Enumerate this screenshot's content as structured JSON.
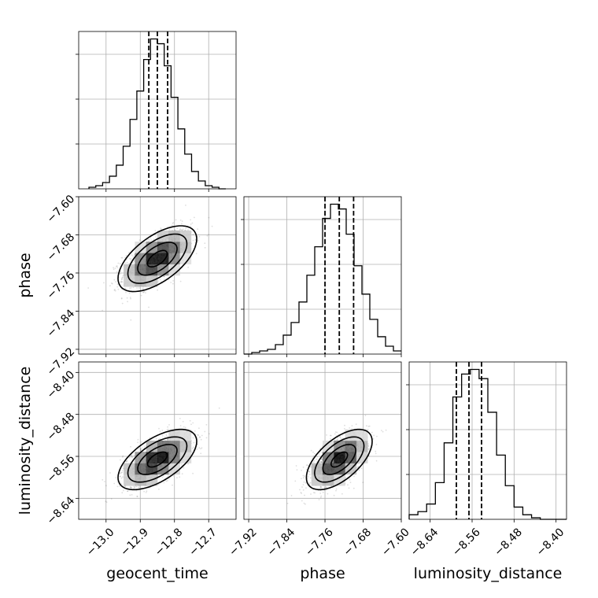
{
  "chart_data": {
    "type": "corner",
    "parameters": [
      {
        "name": "geocent_time",
        "label": "geocent_time",
        "range": [
          -13.08,
          -12.62
        ],
        "ticks": [
          -13.0,
          -12.9,
          -12.8,
          -12.7
        ],
        "tick_labels": [
          "−13.0",
          "−12.9",
          "−12.8",
          "−12.7"
        ],
        "median": -12.85,
        "std": 0.05,
        "quantiles": [
          -12.875,
          -12.85,
          -12.82
        ],
        "hist_counts": [
          1,
          2,
          4,
          8,
          15,
          27,
          44,
          62,
          82,
          95,
          92,
          78,
          58,
          38,
          22,
          11,
          5,
          2,
          1,
          0
        ],
        "hist_range": [
          -13.05,
          -12.65
        ]
      },
      {
        "name": "phase",
        "label": "phase",
        "range": [
          -7.93,
          -7.6
        ],
        "ticks": [
          -7.92,
          -7.84,
          -7.76,
          -7.68,
          -7.6
        ],
        "tick_labels": [
          "−7.92",
          "−7.84",
          "−7.76",
          "−7.68",
          "−7.60"
        ],
        "median": -7.73,
        "std": 0.03,
        "quantiles": [
          -7.76,
          -7.73,
          -7.7
        ],
        "hist_counts": [
          0,
          1,
          2,
          3,
          6,
          12,
          20,
          33,
          50,
          68,
          86,
          95,
          92,
          76,
          56,
          38,
          22,
          11,
          5,
          2
        ],
        "hist_range": [
          -7.93,
          -7.6
        ]
      },
      {
        "name": "luminosity_distance",
        "label": "luminosity_distance",
        "range": [
          -8.68,
          -8.38
        ],
        "ticks": [
          -8.64,
          -8.56,
          -8.48,
          -8.4
        ],
        "tick_labels": [
          "−8.64",
          "−8.56",
          "−8.48",
          "−8.40"
        ],
        "median": -8.566,
        "std": 0.025,
        "quantiles": [
          -8.59,
          -8.566,
          -8.542
        ],
        "hist_counts": [
          3,
          5,
          10,
          24,
          50,
          80,
          95,
          98,
          92,
          70,
          42,
          22,
          8,
          3,
          1,
          0,
          0,
          0
        ],
        "hist_range": [
          -8.68,
          -8.38
        ]
      }
    ],
    "hist_grid_levels": [
      0.3,
      0.6,
      0.9
    ],
    "correlation": 0.6,
    "contour_levels_sigma": [
      0.5,
      1.0,
      1.5,
      2.0
    ],
    "show_grid": true,
    "quantile_lines": "dashed"
  }
}
